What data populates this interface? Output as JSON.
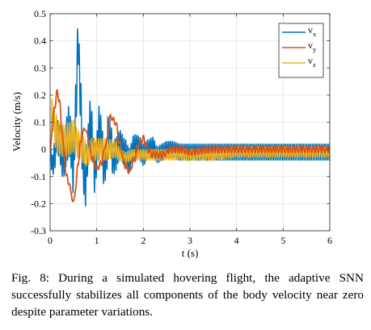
{
  "chart_data": {
    "type": "line",
    "xlabel": "t (s)",
    "ylabel": "Velocity (m/s)",
    "xlim": [
      0,
      6
    ],
    "ylim": [
      -0.3,
      0.5
    ],
    "xticks": [
      0,
      1,
      2,
      3,
      4,
      5,
      6
    ],
    "yticks": [
      -0.3,
      -0.2,
      -0.1,
      0,
      0.1,
      0.2,
      0.3,
      0.4,
      0.5
    ],
    "xtick_labels": [
      "0",
      "1",
      "2",
      "3",
      "4",
      "5",
      "6"
    ],
    "ytick_labels": [
      "-0.3",
      "-0.2",
      "-0.1",
      "0",
      "0.1",
      "0.2",
      "0.3",
      "0.4",
      "0.5"
    ],
    "grid": true,
    "legend_position": "top-right",
    "series": [
      {
        "name": "v",
        "subscript": "x",
        "color": "#0072BD",
        "x": [
          0,
          0.05,
          0.1,
          0.15,
          0.2,
          0.25,
          0.3,
          0.35,
          0.4,
          0.45,
          0.5,
          0.55,
          0.6,
          0.65,
          0.7,
          0.75,
          0.8,
          0.85,
          0.9,
          0.95,
          1.0,
          1.05,
          1.1,
          1.15,
          1.2,
          1.25,
          1.3,
          1.35,
          1.4,
          1.5,
          1.6,
          1.7,
          1.8,
          1.9,
          2.0,
          2.1,
          2.2,
          2.3,
          2.4,
          2.5,
          2.6,
          2.8,
          3.0,
          3.2,
          3.5,
          4.0,
          4.5,
          5.0,
          5.5,
          6.0
        ],
        "center": [
          0.0,
          -0.06,
          -0.02,
          0.05,
          0.03,
          -0.03,
          -0.02,
          0.03,
          0.07,
          0.02,
          -0.08,
          0.15,
          0.4,
          0.2,
          -0.05,
          -0.14,
          -0.02,
          0.1,
          0.06,
          -0.08,
          -0.02,
          0.08,
          0.05,
          -0.06,
          -0.04,
          0.06,
          0.04,
          -0.04,
          -0.02,
          0.02,
          -0.01,
          -0.04,
          0.01,
          0.01,
          -0.02,
          0.0,
          0.01,
          -0.02,
          -0.01,
          0.0,
          0.0,
          -0.01,
          -0.01,
          -0.01,
          -0.01,
          -0.01,
          -0.01,
          -0.01,
          -0.01,
          -0.01
        ],
        "band": [
          0.03,
          0.04,
          0.05,
          0.06,
          0.06,
          0.07,
          0.08,
          0.09,
          0.09,
          0.09,
          0.09,
          0.09,
          0.08,
          0.08,
          0.08,
          0.08,
          0.08,
          0.08,
          0.08,
          0.08,
          0.08,
          0.08,
          0.07,
          0.07,
          0.07,
          0.07,
          0.06,
          0.06,
          0.06,
          0.05,
          0.05,
          0.045,
          0.045,
          0.04,
          0.04,
          0.035,
          0.035,
          0.03,
          0.03,
          0.03,
          0.03,
          0.03,
          0.03,
          0.03,
          0.03,
          0.03,
          0.03,
          0.03,
          0.03,
          0.03
        ]
      },
      {
        "name": "v",
        "subscript": "y",
        "color": "#D95319",
        "x": [
          0,
          0.05,
          0.1,
          0.15,
          0.2,
          0.25,
          0.3,
          0.35,
          0.4,
          0.45,
          0.5,
          0.55,
          0.6,
          0.65,
          0.7,
          0.75,
          0.8,
          0.9,
          1.0,
          1.1,
          1.2,
          1.3,
          1.4,
          1.5,
          1.6,
          1.7,
          1.8,
          1.9,
          2.0,
          2.1,
          2.2,
          2.4,
          2.6,
          2.8,
          3.0,
          3.5,
          4.0,
          4.5,
          5.0,
          5.5,
          6.0
        ],
        "center": [
          0.0,
          0.08,
          0.16,
          0.21,
          0.18,
          0.08,
          -0.02,
          -0.1,
          -0.12,
          -0.16,
          -0.2,
          -0.14,
          -0.05,
          0.02,
          0.06,
          0.08,
          0.05,
          -0.03,
          -0.07,
          -0.05,
          0.02,
          0.12,
          0.1,
          0.02,
          -0.06,
          -0.08,
          -0.04,
          0.02,
          0.04,
          0.0,
          -0.02,
          -0.02,
          0.0,
          0.0,
          -0.01,
          0.0,
          0.0,
          0.0,
          0.0,
          0.0,
          0.0
        ],
        "band": [
          0.005,
          0.01,
          0.01,
          0.01,
          0.01,
          0.01,
          0.01,
          0.01,
          0.01,
          0.01,
          0.01,
          0.01,
          0.01,
          0.01,
          0.01,
          0.01,
          0.01,
          0.01,
          0.01,
          0.01,
          0.01,
          0.01,
          0.01,
          0.01,
          0.01,
          0.01,
          0.012,
          0.012,
          0.012,
          0.012,
          0.012,
          0.012,
          0.012,
          0.012,
          0.012,
          0.012,
          0.012,
          0.012,
          0.012,
          0.012,
          0.012
        ]
      },
      {
        "name": "v",
        "subscript": "z",
        "color": "#EDB120",
        "x": [
          0,
          0.05,
          0.1,
          0.15,
          0.2,
          0.3,
          0.4,
          0.5,
          0.6,
          0.7,
          0.8,
          0.9,
          1.0,
          1.1,
          1.2,
          1.3,
          1.4,
          1.5,
          1.6,
          1.8,
          2.0,
          2.2,
          2.4,
          2.6,
          2.8,
          3.0,
          3.5,
          4.0,
          4.5,
          5.0,
          5.5,
          6.0
        ],
        "center": [
          0.0,
          0.14,
          0.08,
          0.05,
          0.04,
          0.03,
          0.04,
          0.05,
          0.02,
          0.0,
          -0.02,
          0.0,
          0.0,
          0.0,
          0.0,
          0.0,
          0.0,
          -0.02,
          -0.03,
          -0.02,
          -0.02,
          -0.02,
          -0.02,
          -0.02,
          -0.02,
          -0.02,
          -0.02,
          -0.01,
          -0.01,
          -0.01,
          -0.01,
          -0.01
        ],
        "band": [
          0.01,
          0.06,
          0.07,
          0.07,
          0.06,
          0.06,
          0.06,
          0.06,
          0.05,
          0.05,
          0.04,
          0.04,
          0.04,
          0.04,
          0.04,
          0.035,
          0.03,
          0.025,
          0.02,
          0.02,
          0.02,
          0.02,
          0.02,
          0.02,
          0.02,
          0.02,
          0.02,
          0.02,
          0.02,
          0.02,
          0.02,
          0.02
        ]
      }
    ]
  },
  "caption": "Fig. 8: During a simulated hovering flight, the adaptive SNN successfully stabilizes all components of the body velocity near zero despite parameter variations."
}
